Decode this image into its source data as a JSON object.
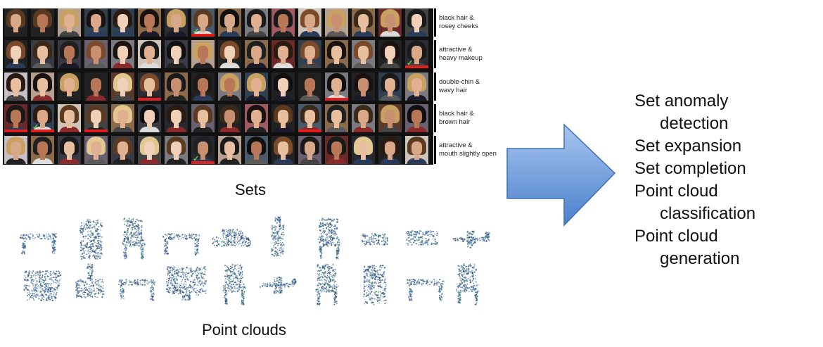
{
  "sets": {
    "caption": "Sets",
    "rows": [
      {
        "label_lines": [
          "black hair &",
          "rosey cheeks"
        ],
        "anomaly_index": 7,
        "flags": [
          7
        ]
      },
      {
        "label_lines": [
          "attractive &",
          "heavy makeup"
        ],
        "anomaly_index": 15,
        "flags": [
          15
        ]
      },
      {
        "label_lines": [
          "double-chin &",
          "wavy hair"
        ],
        "anomaly_index": -1,
        "flags": [
          5,
          12
        ]
      },
      {
        "label_lines": [
          "black hair &",
          "brown hair"
        ],
        "anomaly_index": 1,
        "flags": [
          0,
          1,
          3,
          11
        ]
      },
      {
        "label_lines": [
          "attractive &",
          "mouth slightly open"
        ],
        "anomaly_index": 7,
        "flags": [
          7
        ]
      }
    ],
    "check_glyph": "✓"
  },
  "point_clouds": {
    "caption": "Point clouds",
    "shapes_row1": [
      "table",
      "vase",
      "chair",
      "table",
      "car",
      "bottle",
      "chair",
      "box",
      "bowl",
      "airplane"
    ],
    "shapes_row2": [
      "sofa",
      "lamp",
      "table",
      "monitor",
      "chair",
      "airplane",
      "chair",
      "vase",
      "table",
      "chair"
    ],
    "dot_colors": [
      "#2f5f6f",
      "#3d7a6e",
      "#5a8ad0",
      "#3a4a8a"
    ]
  },
  "arrow": {
    "fill_top": "#a9c6ef",
    "fill_bottom": "#4a80cc",
    "stroke": "#3f6fb0"
  },
  "tasks": [
    {
      "lines": [
        "Set anomaly",
        "detection"
      ]
    },
    {
      "lines": [
        "Set expansion"
      ]
    },
    {
      "lines": [
        "Set completion"
      ]
    },
    {
      "lines": [
        "Point cloud",
        "classification"
      ]
    },
    {
      "lines": [
        "Point cloud",
        "generation"
      ]
    }
  ]
}
